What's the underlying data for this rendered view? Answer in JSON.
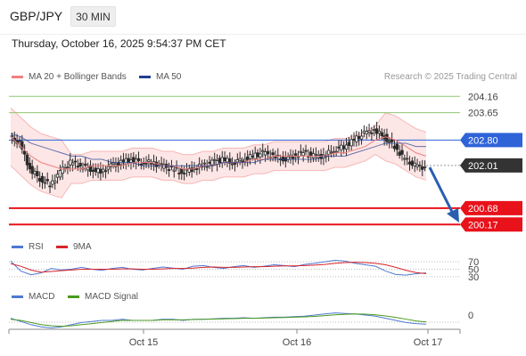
{
  "header": {
    "symbol": "GBP/JPY",
    "timeframe_button": "30 MIN"
  },
  "datetime": "Thursday, October 16, 2025 9:54:37 PM CET",
  "credit": "Research © 2025 Trading Central",
  "legends": {
    "bollinger": "MA 20 + Bollinger Bands",
    "ma50": "MA 50",
    "rsi": "RSI",
    "rsi_ma": "9MA",
    "macd": "MACD",
    "macd_signal": "MACD Signal"
  },
  "colors": {
    "bollinger": "#f08080",
    "bollinger_fill": "#fde2e2",
    "ma50": "#1f3f8f",
    "resistance": "#90c670",
    "pivot": "#2f63d8",
    "support": "#e8121a",
    "arrow": "#2a5fb0",
    "current": "#333333",
    "candle": "#2b2b2b",
    "rsi": "#4f79d1",
    "rsi_ma": "#d9232a",
    "macd": "#4f79d1",
    "macd_signal": "#4a9a1c"
  },
  "chart_data": [
    {
      "type": "candlestick",
      "title": "GBP/JPY",
      "ylim": [
        199.9,
        204.5
      ],
      "x_ticks": [
        "Oct 15",
        "Oct 16",
        "Oct 17"
      ],
      "close_series": [
        202.9,
        202.7,
        201.9,
        201.6,
        201.4,
        201.8,
        202.1,
        202.0,
        201.9,
        201.8,
        202.0,
        202.1,
        202.2,
        202.1,
        202.1,
        202.0,
        201.9,
        201.8,
        201.9,
        202.0,
        202.1,
        202.2,
        202.1,
        202.2,
        202.3,
        202.4,
        202.3,
        202.2,
        202.3,
        202.4,
        202.3,
        202.3,
        202.5,
        202.6,
        202.8,
        203.0,
        203.1,
        202.9,
        202.6,
        202.2,
        202.0,
        201.95
      ],
      "series": [
        {
          "name": "MA 20 + Bollinger Bands",
          "values": [
            202.9,
            202.6,
            202.3,
            202.1,
            202.0,
            201.9,
            201.9,
            201.9,
            202.0,
            202.0,
            202.0,
            202.0,
            202.1,
            202.1,
            202.1,
            202.0,
            202.0,
            201.9,
            201.9,
            202.0,
            202.0,
            202.1,
            202.1,
            202.1,
            202.2,
            202.2,
            202.3,
            202.3,
            202.3,
            202.3,
            202.3,
            202.3,
            202.4,
            202.4,
            202.5,
            202.6,
            202.8,
            202.9,
            202.8,
            202.6,
            202.4,
            202.3
          ]
        },
        {
          "name": "MA 50",
          "values": [
            203.0,
            202.9,
            202.7,
            202.6,
            202.5,
            202.4,
            202.3,
            202.3,
            202.2,
            202.2,
            202.1,
            202.1,
            202.1,
            202.0,
            202.0,
            202.0,
            202.0,
            202.0,
            202.0,
            202.0,
            202.0,
            202.1,
            202.1,
            202.1,
            202.1,
            202.2,
            202.2,
            202.2,
            202.2,
            202.2,
            202.2,
            202.3,
            202.3,
            202.3,
            202.4,
            202.5,
            202.6,
            202.7,
            202.7,
            202.7,
            202.6,
            202.6
          ]
        }
      ],
      "levels": [
        {
          "label": "204.16",
          "value": 204.16,
          "kind": "resistance"
        },
        {
          "label": "203.65",
          "value": 203.65,
          "kind": "resistance"
        },
        {
          "label": "202.80",
          "value": 202.8,
          "kind": "pivot"
        },
        {
          "label": "202.01",
          "value": 202.01,
          "kind": "current"
        },
        {
          "label": "200.68",
          "value": 200.68,
          "kind": "support"
        },
        {
          "label": "200.17",
          "value": 200.17,
          "kind": "support"
        }
      ]
    },
    {
      "type": "line",
      "title": "RSI",
      "ylim": [
        20,
        80
      ],
      "y_ticks": [
        "70",
        "50",
        "30"
      ],
      "series": [
        {
          "name": "RSI",
          "values": [
            72,
            45,
            35,
            40,
            52,
            48,
            50,
            55,
            50,
            47,
            52,
            55,
            50,
            48,
            52,
            56,
            53,
            50,
            58,
            60,
            55,
            52,
            57,
            60,
            55,
            58,
            62,
            60,
            57,
            63,
            66,
            70,
            74,
            72,
            66,
            62,
            58,
            45,
            36,
            34,
            38,
            40
          ]
        },
        {
          "name": "9MA",
          "values": [
            65,
            58,
            48,
            42,
            44,
            46,
            48,
            50,
            50,
            50,
            50,
            51,
            51,
            50,
            50,
            51,
            52,
            52,
            53,
            55,
            56,
            55,
            55,
            56,
            57,
            57,
            58,
            59,
            59,
            60,
            61,
            63,
            66,
            68,
            69,
            68,
            66,
            62,
            55,
            47,
            41,
            38
          ]
        }
      ]
    },
    {
      "type": "line",
      "title": "MACD",
      "ylim": [
        -1,
        1
      ],
      "y_ticks": [
        "0"
      ],
      "series": [
        {
          "name": "MACD",
          "values": [
            0.2,
            -0.1,
            -0.4,
            -0.6,
            -0.7,
            -0.6,
            -0.4,
            -0.2,
            -0.1,
            0.0,
            0.0,
            0.1,
            0.0,
            0.0,
            0.0,
            0.1,
            0.1,
            0.0,
            0.1,
            0.1,
            0.15,
            0.2,
            0.2,
            0.25,
            0.2,
            0.25,
            0.3,
            0.3,
            0.35,
            0.4,
            0.5,
            0.6,
            0.7,
            0.65,
            0.6,
            0.5,
            0.4,
            0.2,
            0.0,
            -0.2,
            -0.3,
            -0.35
          ]
        },
        {
          "name": "MACD Signal",
          "values": [
            0.1,
            0.0,
            -0.2,
            -0.4,
            -0.5,
            -0.55,
            -0.5,
            -0.4,
            -0.3,
            -0.2,
            -0.1,
            0.0,
            0.0,
            0.0,
            0.0,
            0.05,
            0.05,
            0.05,
            0.08,
            0.1,
            0.12,
            0.15,
            0.17,
            0.2,
            0.2,
            0.22,
            0.25,
            0.27,
            0.3,
            0.33,
            0.38,
            0.45,
            0.52,
            0.57,
            0.6,
            0.58,
            0.52,
            0.42,
            0.28,
            0.12,
            -0.05,
            -0.15
          ]
        }
      ]
    }
  ]
}
